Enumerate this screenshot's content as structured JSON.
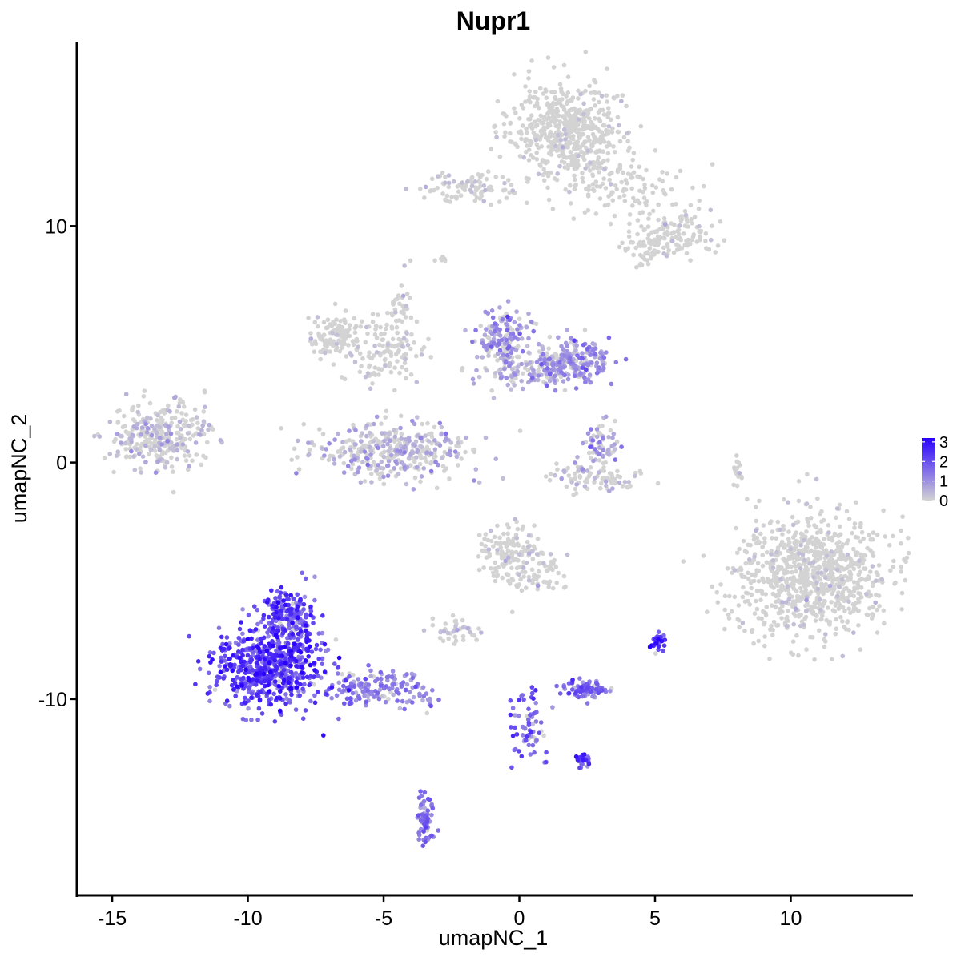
{
  "chart_data": {
    "type": "scatter",
    "title": "Nupr1",
    "xlabel": "umapNC_1",
    "ylabel": "umapNC_2",
    "xlim": [
      -16.3,
      14.5
    ],
    "ylim": [
      -18.3,
      17.8
    ],
    "x_ticks": [
      -15,
      -10,
      -5,
      0,
      5,
      10
    ],
    "x_tick_labels": [
      "-15",
      "-10",
      "-5",
      "0",
      "5",
      "10"
    ],
    "y_ticks": [
      -10,
      0,
      10
    ],
    "y_tick_labels": [
      "-10",
      "0",
      "10"
    ],
    "grid": false,
    "legend_position": "right",
    "color_scale": {
      "low_color": "#d3d3d3",
      "high_color": "#2a00ff",
      "min": 0,
      "max": 3.2,
      "ticks": [
        3,
        2,
        1,
        0
      ],
      "tick_labels": [
        "3",
        "2",
        "1",
        "0"
      ]
    },
    "clusters": [
      {
        "cx": 1.8,
        "cy": 14.1,
        "sx": 1.1,
        "sy": 1.0,
        "n": 520,
        "expr": 0.03
      },
      {
        "cx": -1.8,
        "cy": 11.7,
        "sx": 0.9,
        "sy": 0.35,
        "n": 90,
        "expr": 0.12
      },
      {
        "cx": 3.5,
        "cy": 11.5,
        "sx": 1.4,
        "sy": 0.6,
        "n": 120,
        "expr": 0.04
      },
      {
        "cx": 5.6,
        "cy": 9.7,
        "sx": 0.7,
        "sy": 0.55,
        "n": 130,
        "expr": 0.06
      },
      {
        "cx": 4.6,
        "cy": 9.0,
        "sx": 0.4,
        "sy": 0.3,
        "n": 40,
        "expr": 0.12
      },
      {
        "cx": -6.8,
        "cy": 5.4,
        "sx": 0.5,
        "sy": 0.45,
        "n": 110,
        "expr": 0.06
      },
      {
        "cx": -5.0,
        "cy": 4.6,
        "sx": 0.8,
        "sy": 0.7,
        "n": 120,
        "expr": 0.1
      },
      {
        "cx": -4.4,
        "cy": 6.4,
        "sx": 0.2,
        "sy": 0.7,
        "n": 40,
        "expr": 0.06
      },
      {
        "cx": -4.7,
        "cy": 0.5,
        "sx": 1.5,
        "sy": 0.6,
        "n": 380,
        "expr": 0.55
      },
      {
        "cx": -13.3,
        "cy": 1.1,
        "sx": 0.9,
        "sy": 0.7,
        "n": 320,
        "expr": 0.4
      },
      {
        "cx": -0.6,
        "cy": 5.3,
        "sx": 0.5,
        "sy": 0.6,
        "n": 160,
        "expr": 0.85
      },
      {
        "cx": 1.9,
        "cy": 4.3,
        "sx": 0.7,
        "sy": 0.45,
        "n": 220,
        "expr": 0.95
      },
      {
        "cx": 0.3,
        "cy": 3.9,
        "sx": 1.0,
        "sy": 0.4,
        "n": 110,
        "expr": 0.6
      },
      {
        "cx": 3.0,
        "cy": 0.8,
        "sx": 0.3,
        "sy": 0.5,
        "n": 60,
        "expr": 0.8
      },
      {
        "cx": 2.8,
        "cy": -0.6,
        "sx": 0.9,
        "sy": 0.3,
        "n": 90,
        "expr": 0.35
      },
      {
        "cx": 10.8,
        "cy": -4.8,
        "sx": 1.4,
        "sy": 1.3,
        "n": 900,
        "expr": 0.04
      },
      {
        "cx": -0.4,
        "cy": -3.8,
        "sx": 0.5,
        "sy": 0.6,
        "n": 130,
        "expr": 0.15
      },
      {
        "cx": 0.8,
        "cy": -4.6,
        "sx": 0.5,
        "sy": 0.5,
        "n": 60,
        "expr": 0.08
      },
      {
        "cx": -2.4,
        "cy": -7.1,
        "sx": 0.5,
        "sy": 0.25,
        "n": 40,
        "expr": 0.25
      },
      {
        "cx": -9.2,
        "cy": -8.6,
        "sx": 1.0,
        "sy": 0.9,
        "n": 650,
        "expr": 2.05
      },
      {
        "cx": -8.5,
        "cy": -6.4,
        "sx": 0.55,
        "sy": 0.6,
        "n": 180,
        "expr": 1.9
      },
      {
        "cx": -5.0,
        "cy": -9.6,
        "sx": 0.9,
        "sy": 0.4,
        "n": 150,
        "expr": 1.15
      },
      {
        "cx": -3.5,
        "cy": -15.1,
        "sx": 0.15,
        "sy": 0.5,
        "n": 70,
        "expr": 1.25
      },
      {
        "cx": 2.4,
        "cy": -9.6,
        "sx": 0.4,
        "sy": 0.2,
        "n": 80,
        "expr": 1.45
      },
      {
        "cx": 0.3,
        "cy": -11.1,
        "sx": 0.35,
        "sy": 0.7,
        "n": 70,
        "expr": 1.5
      },
      {
        "cx": 2.3,
        "cy": -12.6,
        "sx": 0.2,
        "sy": 0.15,
        "n": 30,
        "expr": 2.0
      },
      {
        "cx": 5.1,
        "cy": -7.5,
        "sx": 0.15,
        "sy": 0.2,
        "n": 25,
        "expr": 2.3
      },
      {
        "cx": 8.0,
        "cy": -0.4,
        "sx": 0.1,
        "sy": 0.35,
        "n": 15,
        "expr": 0.02
      },
      {
        "cx": -3.0,
        "cy": 8.6,
        "sx": 0.15,
        "sy": 0.1,
        "n": 6,
        "expr": 0.02
      }
    ]
  }
}
